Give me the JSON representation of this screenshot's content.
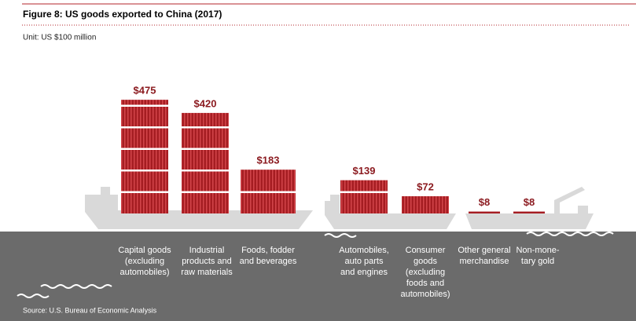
{
  "chart_data": {
    "type": "container-bar",
    "title": "Figure 8: US goods exported to China (2017)",
    "subtitle": "Unit: US $100 million",
    "source": "Source: U.S. Bureau of Economic Analysis",
    "categories": [
      "Capital goods (excluding automobiles)",
      "Industrial products and raw materials",
      "Foods, fodder and beverages",
      "Automobiles, auto parts and engines",
      "Consumer goods (excluding foods and automobiles)",
      "Other general merchandise",
      "Non-mone-tary gold"
    ],
    "values": [
      475,
      420,
      183,
      139,
      72,
      8,
      8
    ],
    "value_labels": [
      "$475",
      "$420",
      "$183",
      "$139",
      "$72",
      "$8",
      "$8"
    ],
    "color": "#a51d22"
  }
}
